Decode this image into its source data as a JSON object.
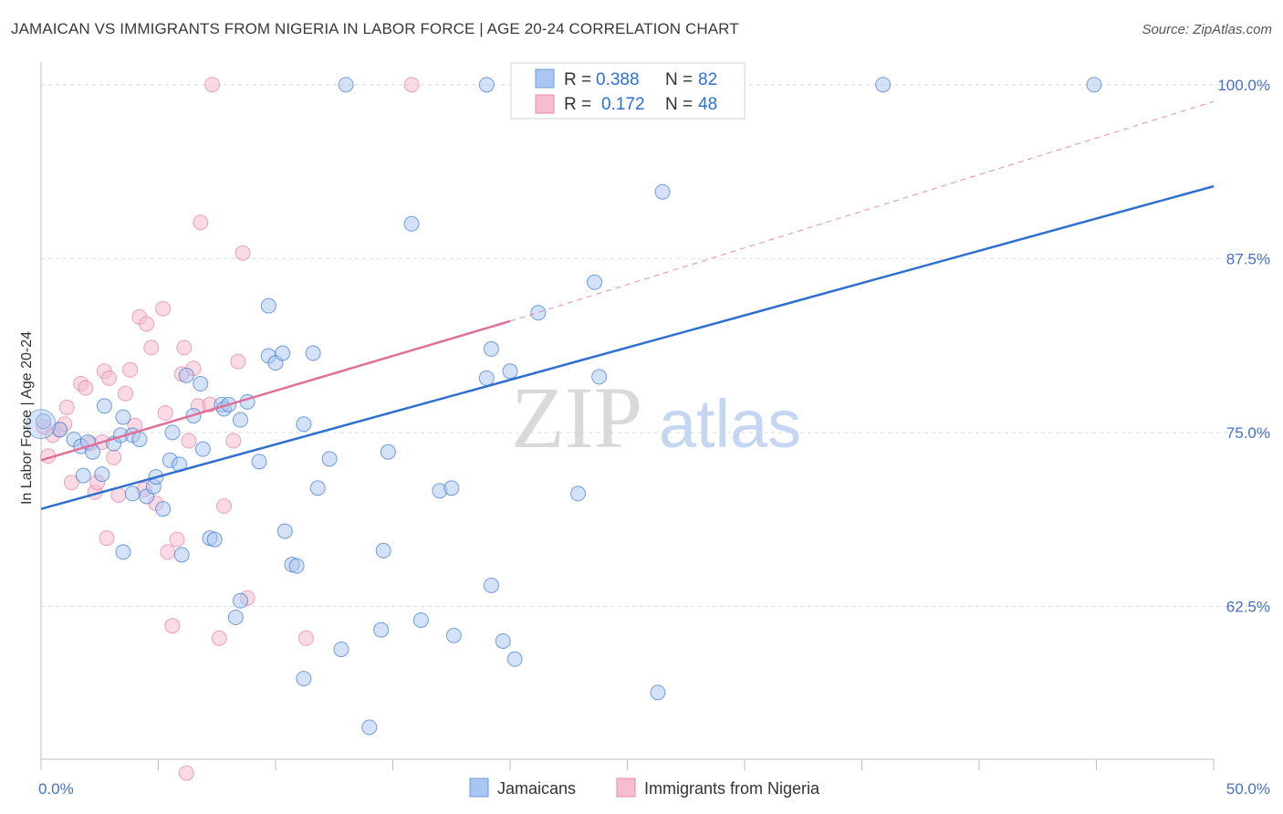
{
  "title": "JAMAICAN VS IMMIGRANTS FROM NIGERIA IN LABOR FORCE | AGE 20-24 CORRELATION CHART",
  "source": "Source: ZipAtlas.com",
  "watermark": {
    "zip": "ZIP",
    "atlas": "atlas"
  },
  "colors": {
    "blue": "#2f6fd0",
    "pink": "#e07099",
    "blue_fill": "#a9c6f0",
    "pink_fill": "#f6bcd0",
    "grid": "#dcdcdc"
  },
  "chart_data": {
    "type": "scatter",
    "xlabel": "",
    "ylabel": "In Labor Force | Age 20-24",
    "xlim": [
      0,
      50
    ],
    "ylim": [
      51.5,
      101.5
    ],
    "x_tick_labels": [
      {
        "value": 0,
        "label": "0.0%"
      },
      {
        "value": 50,
        "label": "50.0%"
      }
    ],
    "y_tick_labels": [
      {
        "value": 62.5,
        "label": "62.5%"
      },
      {
        "value": 75.0,
        "label": "75.0%"
      },
      {
        "value": 87.5,
        "label": "87.5%"
      },
      {
        "value": 100.0,
        "label": "100.0%"
      }
    ],
    "legend": {
      "entries": [
        {
          "r_label": "R =",
          "r_value": "0.388",
          "n_label": "N =",
          "n_value": "82"
        },
        {
          "r_label": "R =",
          "r_value": "0.172",
          "n_label": "N =",
          "n_value": "48"
        }
      ]
    },
    "series": [
      {
        "name": "Jamaicans",
        "trend": {
          "x0": 0,
          "y0": 69.5,
          "x1": 50,
          "y1": 92.7
        },
        "points": [
          [
            0.1,
            75.8
          ],
          [
            0.8,
            75.2
          ],
          [
            1.4,
            74.5
          ],
          [
            1.7,
            74.0
          ],
          [
            2.0,
            74.3
          ],
          [
            2.2,
            73.6
          ],
          [
            2.7,
            76.9
          ],
          [
            3.1,
            74.2
          ],
          [
            2.6,
            72.0
          ],
          [
            1.8,
            71.9
          ],
          [
            3.4,
            74.8
          ],
          [
            3.5,
            76.1
          ],
          [
            3.9,
            74.8
          ],
          [
            4.2,
            74.5
          ],
          [
            3.9,
            70.6
          ],
          [
            4.5,
            70.4
          ],
          [
            4.8,
            71.1
          ],
          [
            4.9,
            71.8
          ],
          [
            5.2,
            69.5
          ],
          [
            5.5,
            73.0
          ],
          [
            5.6,
            75.0
          ],
          [
            5.9,
            72.7
          ],
          [
            6.2,
            79.1
          ],
          [
            6.5,
            76.2
          ],
          [
            6.8,
            78.5
          ],
          [
            6.9,
            73.8
          ],
          [
            7.2,
            67.4
          ],
          [
            7.4,
            67.3
          ],
          [
            7.7,
            77.0
          ],
          [
            7.8,
            76.7
          ],
          [
            8.0,
            77.0
          ],
          [
            8.5,
            75.9
          ],
          [
            8.8,
            77.2
          ],
          [
            9.3,
            72.9
          ],
          [
            8.3,
            61.7
          ],
          [
            8.5,
            62.9
          ],
          [
            3.5,
            66.4
          ],
          [
            6.0,
            66.2
          ],
          [
            9.7,
            84.1
          ],
          [
            9.7,
            80.5
          ],
          [
            10.0,
            80.0
          ],
          [
            10.3,
            80.7
          ],
          [
            10.4,
            67.9
          ],
          [
            10.7,
            65.5
          ],
          [
            10.9,
            65.4
          ],
          [
            11.2,
            75.6
          ],
          [
            11.2,
            57.3
          ],
          [
            11.6,
            80.7
          ],
          [
            11.8,
            71.0
          ],
          [
            12.3,
            73.1
          ],
          [
            12.8,
            59.4
          ],
          [
            13.0,
            100.0
          ],
          [
            14.0,
            53.8
          ],
          [
            14.5,
            60.8
          ],
          [
            14.6,
            66.5
          ],
          [
            14.8,
            73.6
          ],
          [
            15.8,
            90.0
          ],
          [
            16.2,
            61.5
          ],
          [
            17.0,
            70.8
          ],
          [
            17.5,
            71.0
          ],
          [
            17.6,
            60.4
          ],
          [
            19.0,
            78.9
          ],
          [
            19.2,
            81.0
          ],
          [
            19.0,
            100.0
          ],
          [
            19.2,
            64.0
          ],
          [
            19.7,
            60.0
          ],
          [
            20.0,
            79.4
          ],
          [
            20.2,
            58.7
          ],
          [
            21.2,
            83.6
          ],
          [
            22.9,
            70.6
          ],
          [
            23.6,
            85.8
          ],
          [
            23.8,
            79.0
          ],
          [
            26.3,
            56.3
          ],
          [
            26.5,
            92.3
          ],
          [
            26.3,
            100.0
          ],
          [
            27.0,
            100.0
          ],
          [
            35.9,
            100.0
          ],
          [
            44.9,
            100.0
          ]
        ]
      },
      {
        "name": "Immigrants from Nigeria",
        "trend": {
          "x0": 0,
          "y0": 73.0,
          "x1": 20,
          "y1": 83.0,
          "dash_x1": 50,
          "dash_y1": 98.8
        },
        "points": [
          [
            0.1,
            75.4
          ],
          [
            0.3,
            73.3
          ],
          [
            0.5,
            74.8
          ],
          [
            0.8,
            75.2
          ],
          [
            1.0,
            75.6
          ],
          [
            1.1,
            76.8
          ],
          [
            1.3,
            71.4
          ],
          [
            1.7,
            78.5
          ],
          [
            1.9,
            78.2
          ],
          [
            2.1,
            74.2
          ],
          [
            2.3,
            70.7
          ],
          [
            2.4,
            71.4
          ],
          [
            2.6,
            74.3
          ],
          [
            2.7,
            79.4
          ],
          [
            2.8,
            67.4
          ],
          [
            2.9,
            78.9
          ],
          [
            3.1,
            73.2
          ],
          [
            3.3,
            70.5
          ],
          [
            3.6,
            77.8
          ],
          [
            3.8,
            79.5
          ],
          [
            4.2,
            83.3
          ],
          [
            4.4,
            70.9
          ],
          [
            4.5,
            82.8
          ],
          [
            4.7,
            81.1
          ],
          [
            4.9,
            69.9
          ],
          [
            5.2,
            83.9
          ],
          [
            5.3,
            76.4
          ],
          [
            5.4,
            66.4
          ],
          [
            5.6,
            61.1
          ],
          [
            5.8,
            67.3
          ],
          [
            6.0,
            79.2
          ],
          [
            6.1,
            81.1
          ],
          [
            6.2,
            50.5
          ],
          [
            6.3,
            74.4
          ],
          [
            6.5,
            79.6
          ],
          [
            6.7,
            76.9
          ],
          [
            6.8,
            90.1
          ],
          [
            7.2,
            77.0
          ],
          [
            7.3,
            100.0
          ],
          [
            7.6,
            60.2
          ],
          [
            7.8,
            69.7
          ],
          [
            8.2,
            74.4
          ],
          [
            8.4,
            80.1
          ],
          [
            8.6,
            87.9
          ],
          [
            8.8,
            63.1
          ],
          [
            11.3,
            60.2
          ],
          [
            15.8,
            100.0
          ],
          [
            4.0,
            75.5
          ]
        ]
      }
    ]
  },
  "bottom_legend": [
    "Jamaicans",
    "Immigrants from Nigeria"
  ]
}
